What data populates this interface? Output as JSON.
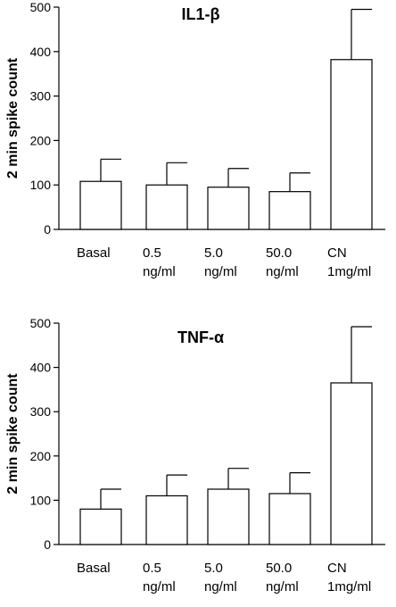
{
  "chart_data": [
    {
      "type": "bar",
      "title": "IL1-β",
      "ylabel": "2 min spike count",
      "xlabel": "",
      "ylim": [
        0,
        500
      ],
      "yticks": [
        0,
        100,
        200,
        300,
        400,
        500
      ],
      "categories": [
        [
          "Basal"
        ],
        [
          "0.5",
          "ng/ml"
        ],
        [
          "5.0",
          "ng/ml"
        ],
        [
          "50.0",
          "ng/ml"
        ],
        [
          "CN",
          "1mg/ml"
        ]
      ],
      "values": [
        108,
        100,
        95,
        85,
        382
      ],
      "error_upper": [
        158,
        150,
        137,
        127,
        495
      ],
      "grid": false
    },
    {
      "type": "bar",
      "title": "TNF-α",
      "ylabel": "2 min spike count",
      "xlabel": "",
      "ylim": [
        0,
        500
      ],
      "yticks": [
        0,
        100,
        200,
        300,
        400,
        500
      ],
      "categories": [
        [
          "Basal"
        ],
        [
          "0.5",
          "ng/ml"
        ],
        [
          "5.0",
          "ng/ml"
        ],
        [
          "50.0",
          "ng/ml"
        ],
        [
          "CN",
          "1mg/ml"
        ]
      ],
      "values": [
        80,
        110,
        125,
        115,
        365
      ],
      "error_upper": [
        125,
        157,
        172,
        162,
        492
      ],
      "grid": false
    }
  ]
}
